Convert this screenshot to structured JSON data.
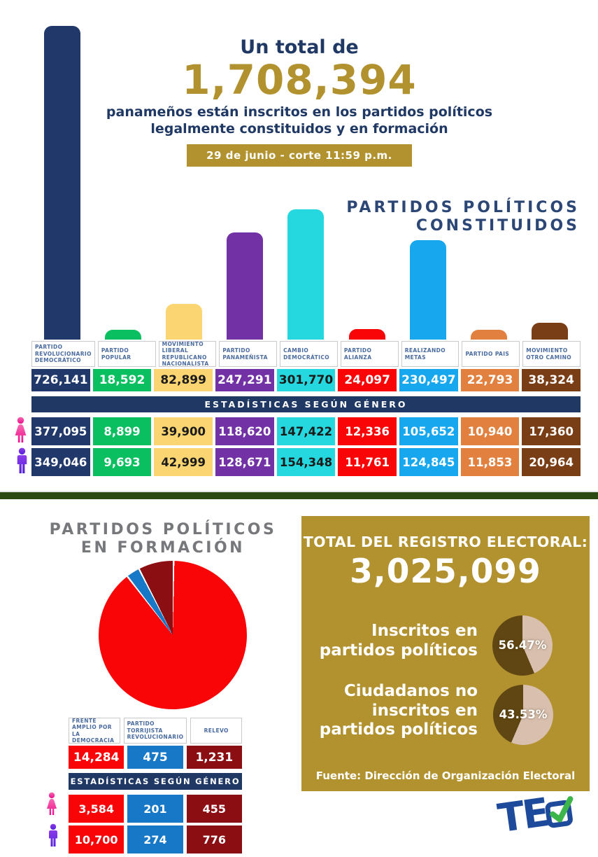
{
  "header": {
    "prefix": "Un total de",
    "total": "1,708,394",
    "subtitle": "panameños están inscritos en los partidos políticos legalmente constituidos y en formación",
    "badge": "29 de junio - corte 11:59 p.m."
  },
  "constituted": {
    "title_line1": "PARTIDOS POLÍTICOS",
    "title_line2": "CONSTITUIDOS",
    "gender_header": "ESTADÍSTICAS SEGÚN GÉNERO",
    "parties": [
      {
        "name": "PARTIDO REVOLUCIONARIO DEMOCRÁTICO",
        "total": "726,141",
        "female": "377,095",
        "male": "349,046",
        "color": "#21386B",
        "text_color": "#FFFFFF"
      },
      {
        "name": "PARTIDO POPULAR",
        "total": "18,592",
        "female": "8,899",
        "male": "9,693",
        "color": "#0ABF60",
        "text_color": "#FFFFFF"
      },
      {
        "name": "MOVIMIENTO LIBERAL REPUBLICANO NACIONALISTA",
        "total": "82,899",
        "female": "39,900",
        "male": "42,999",
        "color": "#FBD571",
        "text_color": "#1A1A1A"
      },
      {
        "name": "PARTIDO PANAMEÑISTA",
        "total": "247,291",
        "female": "118,620",
        "male": "128,671",
        "color": "#7232A5",
        "text_color": "#FFFFFF"
      },
      {
        "name": "CAMBIO DEMOCRÁTICO",
        "total": "301,770",
        "female": "147,422",
        "male": "154,348",
        "color": "#25D8DF",
        "text_color": "#1A1A1A"
      },
      {
        "name": "PARTIDO ALIANZA",
        "total": "24,097",
        "female": "12,336",
        "male": "11,761",
        "color": "#F90508",
        "text_color": "#FFFFFF"
      },
      {
        "name": "REALIZANDO METAS",
        "total": "230,497",
        "female": "105,652",
        "male": "124,845",
        "color": "#17A7EF",
        "text_color": "#FFFFFF"
      },
      {
        "name": "PARTIDO PAIS",
        "total": "22,793",
        "female": "10,940",
        "male": "11,853",
        "color": "#E2813F",
        "text_color": "#FFFFFF"
      },
      {
        "name": "MOVIMIENTO OTRO CAMINO",
        "total": "38,324",
        "female": "17,360",
        "male": "20,964",
        "color": "#7A3E17",
        "text_color": "#FFFFFF"
      }
    ]
  },
  "formation": {
    "title_line1": "PARTIDOS POLÍTICOS",
    "title_line2": "EN FORMACIÓN",
    "gender_header": "ESTADÍSTICAS SEGÚN GÉNERO",
    "parties": [
      {
        "name": "FRENTE AMPLIO POR LA DEMOCRACIA",
        "total": "14,284",
        "female": "3,584",
        "male": "10,700",
        "color": "#F90508",
        "text_color": "#FFFFFF"
      },
      {
        "name": "PARTIDO TORRIJISTA REVOLUCIONARIO",
        "total": "475",
        "female": "201",
        "male": "274",
        "color": "#1778C8",
        "text_color": "#FFFFFF"
      },
      {
        "name": "RELEVO",
        "total": "1,231",
        "female": "455",
        "male": "776",
        "color": "#8B0E13",
        "text_color": "#FFFFFF"
      }
    ]
  },
  "registry": {
    "title": "TOTAL DEL REGISTRO ELECTORAL:",
    "total": "3,025,099",
    "inscribed_label_line1": "Inscritos en",
    "inscribed_label_line2": "partidos políticos",
    "inscribed_pct": "56.47%",
    "not_inscribed_label_line1": "Ciudadanos no",
    "not_inscribed_label_line2": "inscritos en",
    "not_inscribed_label_line3": "partidos políticos",
    "not_inscribed_pct": "43.53%",
    "source": "Fuente: Dirección de Organización Electoral",
    "box_color": "#B2912F"
  },
  "logo": {
    "text": "TE"
  },
  "colors": {
    "navy": "#1F3864",
    "gold": "#B2912F",
    "divider_green": "#2B4913",
    "female_icon": "#EE2290",
    "male_icon": "#6A2FDD",
    "logo_blue": "#1E4A9B",
    "logo_green": "#3CB54A"
  },
  "chart_data": [
    {
      "type": "bar",
      "title": "PARTIDOS POLÍTICOS CONSTITUIDOS",
      "categories": [
        "PARTIDO REVOLUCIONARIO DEMOCRÁTICO",
        "PARTIDO POPULAR",
        "MOVIMIENTO LIBERAL REPUBLICANO NACIONALISTA",
        "PARTIDO PANAMEÑISTA",
        "CAMBIO DEMOCRÁTICO",
        "PARTIDO ALIANZA",
        "REALIZANDO METAS",
        "PARTIDO PAIS",
        "MOVIMIENTO OTRO CAMINO"
      ],
      "values": [
        726141,
        18592,
        82899,
        247291,
        301770,
        24097,
        230497,
        22793,
        38324
      ],
      "series": [
        {
          "name": "TOTAL",
          "values": [
            726141,
            18592,
            82899,
            247291,
            301770,
            24097,
            230497,
            22793,
            38324
          ]
        },
        {
          "name": "MUJERES",
          "values": [
            377095,
            8899,
            39900,
            118620,
            147422,
            12336,
            105652,
            10940,
            17360
          ]
        },
        {
          "name": "HOMBRES",
          "values": [
            349046,
            9693,
            42999,
            128671,
            154348,
            11761,
            124845,
            11853,
            20964
          ]
        }
      ],
      "colors": [
        "#21386B",
        "#0ABF60",
        "#FBD571",
        "#7232A5",
        "#25D8DF",
        "#F90508",
        "#17A7EF",
        "#E2813F",
        "#7A3E17"
      ],
      "ylim": [
        0,
        726141
      ],
      "grid": false,
      "legend": "none"
    },
    {
      "type": "pie",
      "title": "PARTIDOS POLÍTICOS EN FORMACIÓN",
      "categories": [
        "FRENTE AMPLIO POR LA DEMOCRACIA",
        "PARTIDO TORRIJISTA REVOLUCIONARIO",
        "RELEVO"
      ],
      "values": [
        14284,
        475,
        1231
      ],
      "colors": [
        "#F90508",
        "#1778C8",
        "#8B0E13"
      ],
      "start_angle_deg": 0,
      "legend": "none"
    },
    {
      "type": "pie",
      "title": "Inscritos en partidos políticos",
      "categories": [
        "Inscritos (oscuro)",
        "Resto (claro)"
      ],
      "values": [
        56.47,
        43.53
      ],
      "colors": [
        "#5F4612",
        "#D8BFAE"
      ],
      "label": "56.47%"
    },
    {
      "type": "pie",
      "title": "Ciudadanos no inscritos en partidos políticos",
      "categories": [
        "No inscritos (oscuro)",
        "Resto (claro)"
      ],
      "values": [
        43.53,
        56.47
      ],
      "colors": [
        "#5F4612",
        "#D8BFAE"
      ],
      "label": "43.53%"
    }
  ]
}
